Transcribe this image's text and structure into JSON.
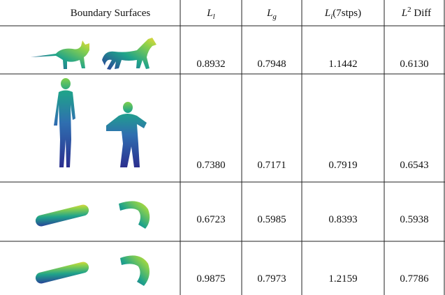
{
  "table": {
    "header": [
      {
        "text": "Boundary Surfaces"
      },
      {
        "main": "L",
        "sub": "l"
      },
      {
        "main": "L",
        "sub": "g"
      },
      {
        "main": "L",
        "sub": "i",
        "rest": "(7stps)"
      },
      {
        "main": "L",
        "sup": "2",
        "rest": " Diff"
      }
    ],
    "rows": [
      [
        "0.8932",
        "0.7948",
        "1.1442",
        "0.6130"
      ],
      [
        "0.7380",
        "0.7171",
        "0.7919",
        "0.6543"
      ],
      [
        "0.6723",
        "0.5985",
        "0.8393",
        "0.5938"
      ],
      [
        "0.9875",
        "0.7973",
        "1.2159",
        "0.7786"
      ]
    ]
  }
}
